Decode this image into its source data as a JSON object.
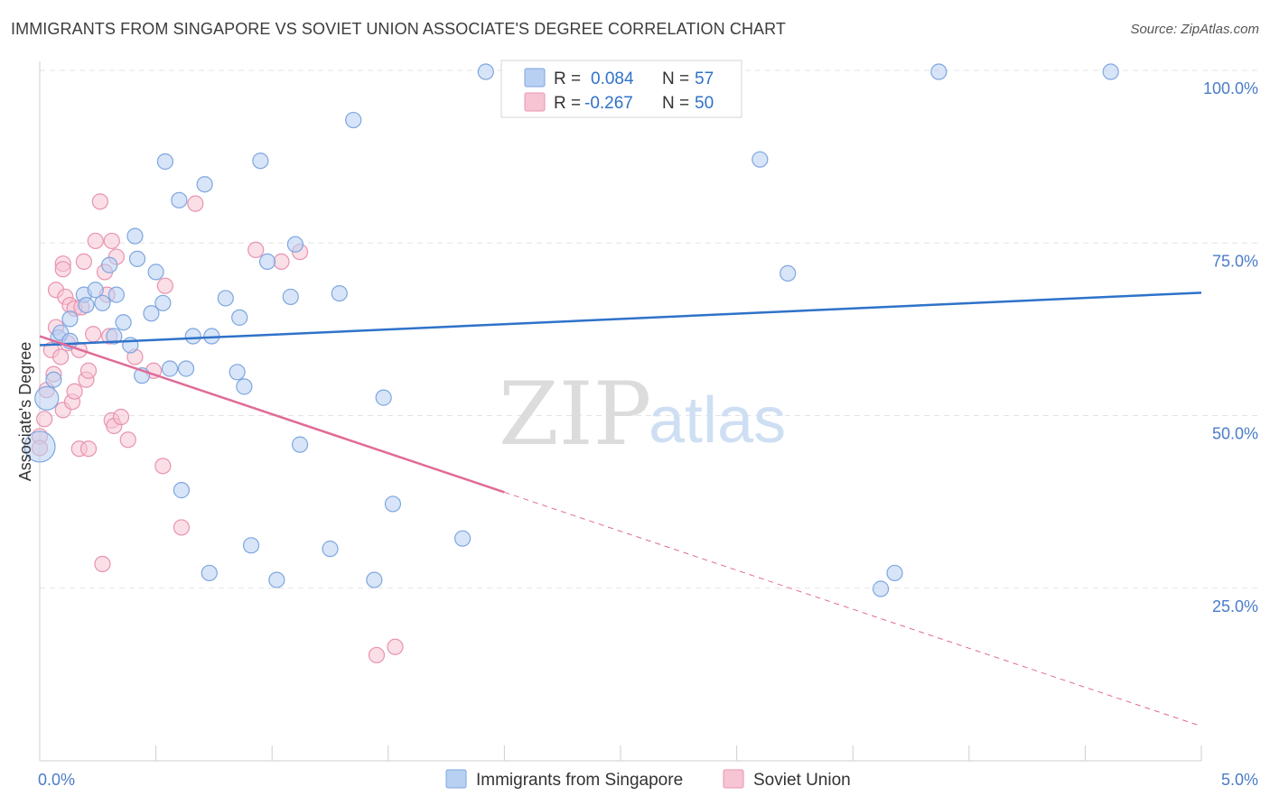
{
  "title": "IMMIGRANTS FROM SINGAPORE VS SOVIET UNION ASSOCIATE'S DEGREE CORRELATION CHART",
  "source": "Source: ZipAtlas.com",
  "watermark": {
    "zip": "ZIP",
    "atlas": "atlas"
  },
  "colors": {
    "blue_fill": "#b8d0f2",
    "blue_stroke": "#7ea6e0",
    "blue_line": "#2f72c9",
    "pink_fill": "#f6c4d3",
    "pink_stroke": "#e993b0",
    "pink_line": "#e06b97",
    "tick_blue": "#4a7cc9",
    "grid": "#e3e3e3"
  },
  "chart_data": {
    "type": "scatter",
    "xlabel": "",
    "ylabel": "Associate's Degree",
    "xlim": [
      0,
      5
    ],
    "ylim": [
      0,
      100
    ],
    "x_tick_labels": [
      {
        "value": 0,
        "label": "0.0%"
      },
      {
        "value": 5,
        "label": "5.0%"
      }
    ],
    "y_tick_labels": [
      {
        "value": 25,
        "label": "25.0%"
      },
      {
        "value": 50,
        "label": "50.0%"
      },
      {
        "value": 75,
        "label": "75.0%"
      },
      {
        "value": 100,
        "label": "100.0%"
      }
    ],
    "legend": [
      {
        "name": "Immigrants from Singapore",
        "r_label": "R =",
        "r_value": "0.084",
        "n_label": "N =",
        "n_value": "57"
      },
      {
        "name": "Soviet Union",
        "r_label": "R =",
        "r_value": "-0.267",
        "n_label": "N =",
        "n_value": "50"
      }
    ],
    "series": [
      {
        "name": "Immigrants from Singapore",
        "trend": {
          "x0": 0,
          "y0": 60.2,
          "x1": 5,
          "y1": 67.8,
          "solid_to": 5
        },
        "points": [
          [
            0.0,
            45.5,
            3
          ],
          [
            0.03,
            52.5,
            2
          ],
          [
            0.06,
            55.2,
            1
          ],
          [
            0.08,
            61.3,
            1
          ],
          [
            0.09,
            62.0,
            1
          ],
          [
            0.13,
            60.8,
            1
          ],
          [
            0.13,
            64.0,
            1
          ],
          [
            0.19,
            67.5,
            1
          ],
          [
            0.2,
            66.0,
            1
          ],
          [
            0.24,
            68.2,
            1
          ],
          [
            0.27,
            66.3,
            1
          ],
          [
            0.3,
            71.8,
            1
          ],
          [
            0.32,
            61.5,
            1
          ],
          [
            0.33,
            67.5,
            1
          ],
          [
            0.36,
            63.5,
            1
          ],
          [
            0.39,
            60.2,
            1
          ],
          [
            0.41,
            76.0,
            1
          ],
          [
            0.42,
            72.7,
            1
          ],
          [
            0.44,
            55.8,
            1
          ],
          [
            0.48,
            64.8,
            1
          ],
          [
            0.5,
            70.8,
            1
          ],
          [
            0.53,
            66.3,
            1
          ],
          [
            0.54,
            86.8,
            1
          ],
          [
            0.56,
            56.8,
            1
          ],
          [
            0.6,
            81.2,
            1
          ],
          [
            0.61,
            39.2,
            1
          ],
          [
            0.63,
            56.8,
            1
          ],
          [
            0.66,
            61.5,
            1
          ],
          [
            0.71,
            83.5,
            1
          ],
          [
            0.73,
            27.2,
            1
          ],
          [
            0.74,
            61.5,
            1
          ],
          [
            0.8,
            67.0,
            1
          ],
          [
            0.85,
            56.3,
            1
          ],
          [
            0.86,
            64.2,
            1
          ],
          [
            0.88,
            54.2,
            1
          ],
          [
            0.91,
            31.2,
            1
          ],
          [
            0.95,
            86.9,
            1
          ],
          [
            0.98,
            72.3,
            1
          ],
          [
            1.02,
            26.2,
            1
          ],
          [
            1.08,
            67.2,
            1
          ],
          [
            1.1,
            74.8,
            1
          ],
          [
            1.12,
            45.8,
            1
          ],
          [
            1.25,
            30.7,
            1
          ],
          [
            1.29,
            67.7,
            1
          ],
          [
            1.35,
            92.8,
            1
          ],
          [
            1.44,
            26.2,
            1
          ],
          [
            1.48,
            52.6,
            1
          ],
          [
            1.52,
            37.2,
            1
          ],
          [
            1.82,
            32.2,
            1
          ],
          [
            1.92,
            99.8,
            1
          ],
          [
            3.1,
            87.1,
            1
          ],
          [
            3.22,
            70.6,
            1
          ],
          [
            3.62,
            24.9,
            1
          ],
          [
            3.68,
            27.2,
            1
          ],
          [
            3.87,
            99.8,
            1
          ],
          [
            4.61,
            99.8,
            1
          ]
        ]
      },
      {
        "name": "Soviet Union",
        "trend": {
          "x0": 0,
          "y0": 61.5,
          "x1": 5,
          "y1": 5.0,
          "solid_to": 2.0
        },
        "points": [
          [
            0.0,
            47.0,
            1
          ],
          [
            0.0,
            45.3,
            1
          ],
          [
            0.02,
            49.5,
            1
          ],
          [
            0.03,
            53.7,
            1
          ],
          [
            0.05,
            59.5,
            1
          ],
          [
            0.06,
            56.0,
            1
          ],
          [
            0.07,
            62.8,
            1
          ],
          [
            0.07,
            68.2,
            1
          ],
          [
            0.09,
            58.5,
            1
          ],
          [
            0.1,
            50.8,
            1
          ],
          [
            0.1,
            72.0,
            1
          ],
          [
            0.1,
            71.2,
            1
          ],
          [
            0.11,
            67.2,
            1
          ],
          [
            0.12,
            60.5,
            1
          ],
          [
            0.13,
            66.0,
            1
          ],
          [
            0.14,
            52.0,
            1
          ],
          [
            0.15,
            65.5,
            1
          ],
          [
            0.15,
            53.5,
            1
          ],
          [
            0.17,
            59.5,
            1
          ],
          [
            0.17,
            45.2,
            1
          ],
          [
            0.18,
            65.7,
            1
          ],
          [
            0.19,
            72.3,
            1
          ],
          [
            0.2,
            55.2,
            1
          ],
          [
            0.21,
            45.2,
            1
          ],
          [
            0.21,
            56.5,
            1
          ],
          [
            0.23,
            61.8,
            1
          ],
          [
            0.24,
            75.3,
            1
          ],
          [
            0.26,
            81.0,
            1
          ],
          [
            0.27,
            28.5,
            1
          ],
          [
            0.28,
            70.8,
            1
          ],
          [
            0.29,
            67.5,
            1
          ],
          [
            0.3,
            61.5,
            1
          ],
          [
            0.31,
            75.3,
            1
          ],
          [
            0.31,
            49.3,
            1
          ],
          [
            0.32,
            48.5,
            1
          ],
          [
            0.33,
            73.0,
            1
          ],
          [
            0.35,
            49.8,
            1
          ],
          [
            0.38,
            46.5,
            1
          ],
          [
            0.41,
            58.5,
            1
          ],
          [
            0.49,
            56.5,
            1
          ],
          [
            0.53,
            42.7,
            1
          ],
          [
            0.54,
            68.8,
            1
          ],
          [
            0.61,
            33.8,
            1
          ],
          [
            0.67,
            80.7,
            1
          ],
          [
            0.93,
            74.0,
            1
          ],
          [
            1.04,
            72.3,
            1
          ],
          [
            1.12,
            73.7,
            1
          ],
          [
            1.45,
            15.3,
            1
          ],
          [
            1.53,
            16.5,
            1
          ]
        ]
      }
    ]
  }
}
